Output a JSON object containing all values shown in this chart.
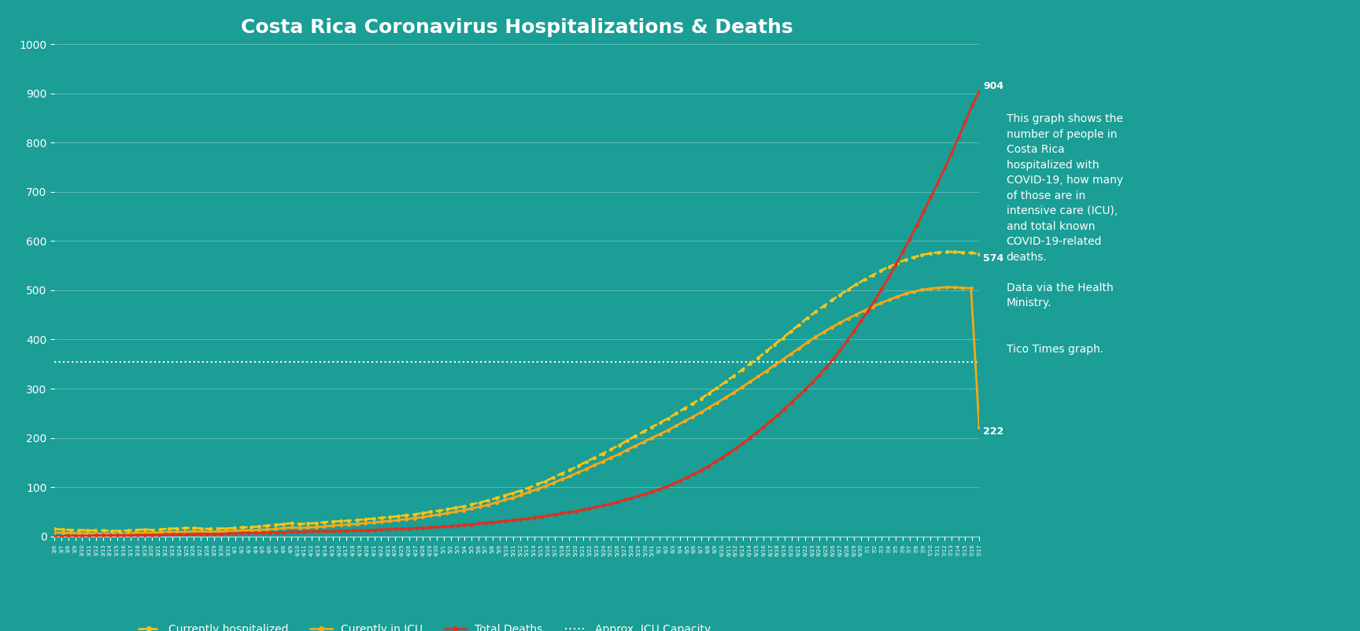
{
  "title": "Costa Rica Coronavirus Hospitalizations & Deaths",
  "background_color": "#1a9e96",
  "plot_bg_color": "#1a9e96",
  "text_color": "white",
  "ylim": [
    0,
    1000
  ],
  "yticks": [
    0,
    100,
    200,
    300,
    400,
    500,
    600,
    700,
    800,
    900,
    1000
  ],
  "icu_capacity": 355,
  "final_values": {
    "hospitalized": 574,
    "icu": 222,
    "deaths": 904
  },
  "annotation_text": "This graph shows the\nnumber of people in\nCosta Rica\nhospitalized with\nCOVID-19, how many\nof those are in\nintensive care (ICU),\nand total known\nCOVID-19-related\ndeaths.\n\nData via the Health\nMinistry.\n\n\nTico Times graph.",
  "legend_labels": [
    "Currently hospitalized",
    "Curently in ICU",
    "Total Deaths",
    "Approx. ICU Capacity"
  ],
  "hosp_color": "#f5c518",
  "icu_color": "#f5a818",
  "deaths_color": "#e03020",
  "capacity_color": "white",
  "hospitalized": [
    15,
    14,
    13,
    13,
    12,
    12,
    12,
    11,
    11,
    12,
    13,
    14,
    13,
    14,
    16,
    16,
    17,
    17,
    16,
    15,
    16,
    16,
    17,
    18,
    19,
    20,
    22,
    23,
    25,
    27,
    25,
    26,
    27,
    29,
    30,
    31,
    32,
    33,
    35,
    36,
    38,
    39,
    41,
    43,
    45,
    47,
    50,
    52,
    55,
    58,
    61,
    65,
    69,
    73,
    78,
    83,
    88,
    93,
    99,
    106,
    112,
    120,
    128,
    135,
    143,
    152,
    160,
    168,
    177,
    185,
    195,
    204,
    213,
    222,
    231,
    240,
    250,
    260,
    270,
    280,
    291,
    302,
    314,
    326,
    338,
    351,
    363,
    376,
    390,
    403,
    417,
    430,
    444,
    456,
    468,
    480,
    491,
    502,
    512,
    522,
    531,
    540,
    548,
    555,
    562,
    567,
    572,
    575,
    577,
    578,
    578,
    577,
    576,
    574
  ],
  "icu": [
    8,
    7,
    7,
    6,
    6,
    6,
    5,
    5,
    5,
    6,
    7,
    7,
    7,
    8,
    9,
    9,
    9,
    10,
    10,
    9,
    10,
    10,
    11,
    12,
    12,
    13,
    14,
    15,
    17,
    18,
    17,
    18,
    19,
    20,
    22,
    23,
    24,
    25,
    27,
    28,
    30,
    31,
    33,
    35,
    37,
    39,
    42,
    44,
    47,
    50,
    53,
    57,
    60,
    64,
    69,
    74,
    78,
    84,
    90,
    96,
    102,
    109,
    116,
    122,
    130,
    137,
    145,
    152,
    160,
    167,
    176,
    184,
    192,
    200,
    208,
    216,
    225,
    234,
    243,
    252,
    262,
    272,
    282,
    292,
    303,
    314,
    325,
    336,
    348,
    359,
    371,
    382,
    394,
    405,
    415,
    425,
    434,
    443,
    451,
    459,
    467,
    474,
    481,
    487,
    493,
    497,
    501,
    503,
    505,
    506,
    506,
    505,
    504,
    222
  ],
  "deaths": [
    0,
    0,
    1,
    1,
    1,
    1,
    2,
    2,
    2,
    2,
    2,
    2,
    3,
    3,
    3,
    3,
    4,
    4,
    4,
    4,
    4,
    5,
    5,
    5,
    5,
    6,
    6,
    7,
    7,
    7,
    7,
    8,
    8,
    8,
    9,
    9,
    9,
    10,
    10,
    10,
    10,
    11,
    11,
    12,
    12,
    12,
    13,
    14,
    14,
    15,
    15,
    16,
    17,
    17,
    18,
    19,
    20,
    21,
    22,
    23,
    24,
    26,
    27,
    28,
    30,
    31,
    33,
    34,
    36,
    38,
    40,
    42,
    44,
    47,
    49,
    51,
    54,
    57,
    60,
    63,
    66,
    70,
    74,
    78,
    82,
    86,
    91,
    96,
    101,
    107,
    113,
    120,
    127,
    134,
    142,
    151,
    160,
    169,
    179,
    189,
    200,
    211,
    222,
    234,
    246,
    259,
    272,
    285,
    299,
    313,
    328,
    344,
    360,
    378,
    397,
    417,
    437,
    458,
    480,
    503,
    527,
    552,
    578,
    604,
    631,
    659,
    688,
    717,
    747,
    778,
    810,
    842,
    876,
    904
  ]
}
